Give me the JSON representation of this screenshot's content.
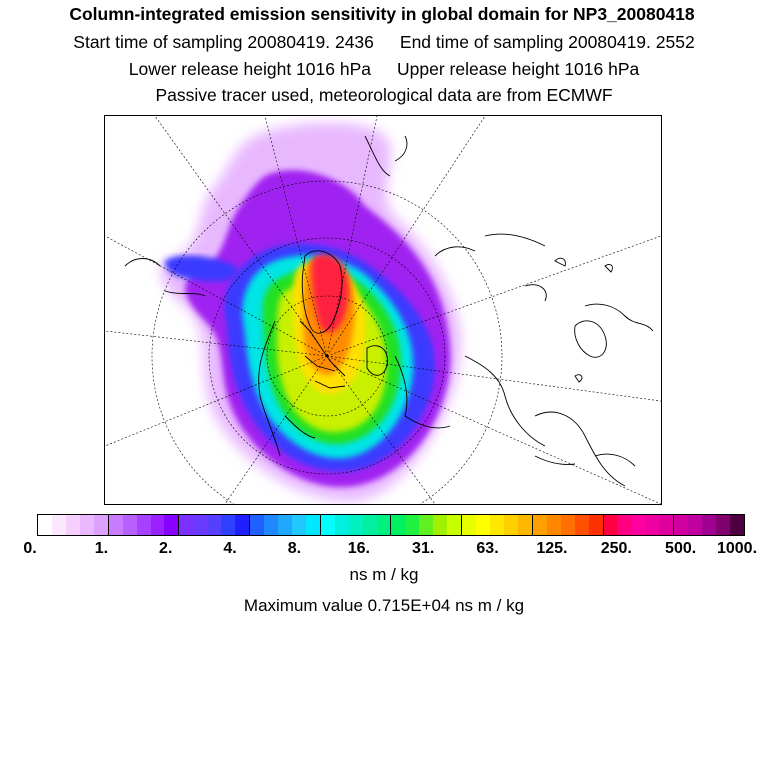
{
  "title": {
    "line1": "Column-integrated emission sensitivity in global domain for NP3_20080418",
    "start": "Start time of sampling 20080419.  2436",
    "end": "End time of sampling 20080419.  2552",
    "lower": "Lower release height 1016 hPa",
    "upper": "Upper release height 1016 hPa",
    "line4": "Passive tracer used, meteorological data are from ECMWF"
  },
  "map": {
    "projection": "north-polar-stereographic",
    "plume_description": "emission sensitivity plume",
    "colors": {
      "outer": "#a020f0",
      "outer_light": "#e8b8ff",
      "blue": "#3a3aff",
      "cyan": "#00e5e5",
      "green": "#20e020",
      "yellow_green": "#c8f000",
      "yellow": "#ffe000",
      "orange": "#ff8c00",
      "red": "#ff2040",
      "magenta": "#ff1493"
    }
  },
  "colorbar": {
    "colors": [
      "#ffffff",
      "#fbe8ff",
      "#f5d0ff",
      "#eab8ff",
      "#dda0ff",
      "#c97cff",
      "#b860ff",
      "#a840ff",
      "#9a20ff",
      "#8800ff",
      "#7a30ff",
      "#6a3aff",
      "#5540ff",
      "#3040ff",
      "#2020ff",
      "#2060ff",
      "#2088ff",
      "#20a8ff",
      "#20c8ff",
      "#00e8ff",
      "#00ffff",
      "#00f0e0",
      "#00f0c0",
      "#00f0a0",
      "#00f080",
      "#00f060",
      "#20f040",
      "#60f020",
      "#a0f000",
      "#c8ff00",
      "#e8ff00",
      "#ffff00",
      "#ffe800",
      "#ffd000",
      "#ffb800",
      "#ffa000",
      "#ff8800",
      "#ff7000",
      "#ff5000",
      "#ff3000",
      "#ff0040",
      "#ff0080",
      "#ff00a0",
      "#f000a0",
      "#e000a0",
      "#d000a0",
      "#c000a0",
      "#a00090",
      "#800070",
      "#500040"
    ],
    "tick_every": 5,
    "labels": [
      "0.",
      "1.",
      "2.",
      "4.",
      "8.",
      "16.",
      "31.",
      "63.",
      "125.",
      "250.",
      "500.",
      "1000."
    ]
  },
  "units": "ns m / kg",
  "max_value": "Maximum value  0.715E+04 ns m / kg"
}
